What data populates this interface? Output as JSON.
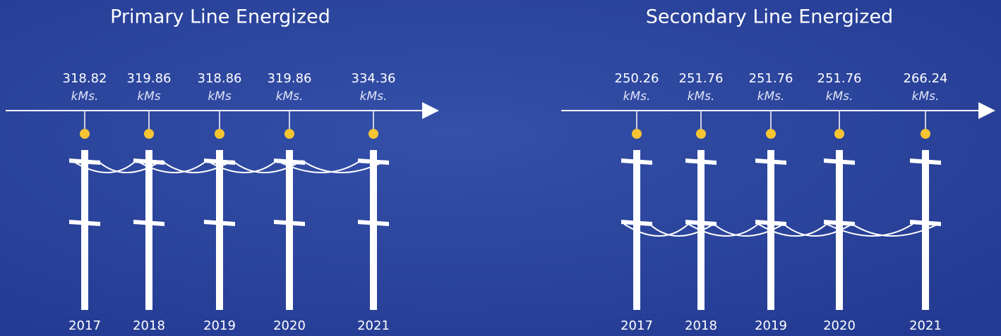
{
  "panels": [
    {
      "title": "Primary Line Energized",
      "items": [
        {
          "value": "318.82",
          "unit": "kMs.",
          "year": "2017"
        },
        {
          "value": "319.86",
          "unit": "kMs",
          "year": "2018"
        },
        {
          "value": "318.86",
          "unit": "kMs",
          "year": "2019"
        },
        {
          "value": "319.86",
          "unit": "kMs.",
          "year": "2020"
        },
        {
          "value": "334.36",
          "unit": "kMs.",
          "year": "2021"
        }
      ]
    },
    {
      "title": "Secondary Line Energized",
      "items": [
        {
          "value": "250.26",
          "unit": "kMs.",
          "year": "2017"
        },
        {
          "value": "251.76",
          "unit": "kMs.",
          "year": "2018"
        },
        {
          "value": "251.76",
          "unit": "kMs.",
          "year": "2019"
        },
        {
          "value": "251.76",
          "unit": "kMs.",
          "year": "2020"
        },
        {
          "value": "266.24",
          "unit": "kMs.",
          "year": "2021"
        }
      ]
    }
  ]
}
